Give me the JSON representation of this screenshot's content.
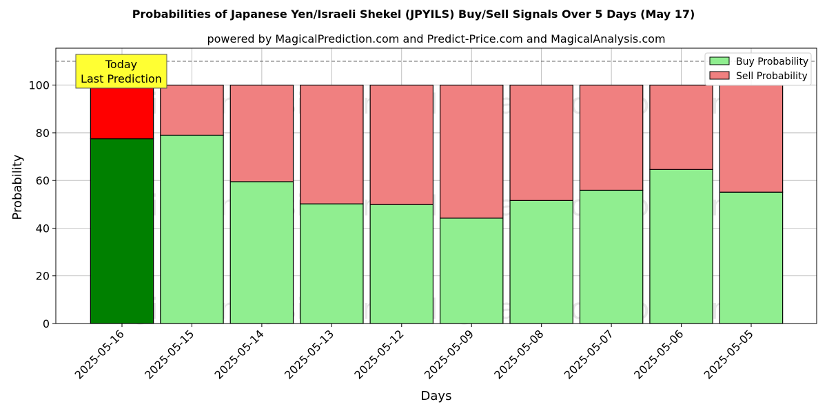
{
  "chart_data": {
    "type": "bar",
    "stacked": true,
    "title": "Probabilities of Japanese Yen/Israeli Shekel (JPYILS) Buy/Sell Signals Over 5 Days (May 17)",
    "subtitle": "powered by MagicalPrediction.com and Predict-Price.com and MagicalAnalysis.com",
    "xlabel": "Days",
    "ylabel": "Probability",
    "ylim": [
      0,
      115.5
    ],
    "yticks": [
      0,
      20,
      40,
      60,
      80,
      100
    ],
    "reference_line": 110,
    "grid": true,
    "legend_position": "top-right",
    "categories": [
      "2025-05-16",
      "2025-05-15",
      "2025-05-14",
      "2025-05-13",
      "2025-05-12",
      "2025-05-09",
      "2025-05-08",
      "2025-05-07",
      "2025-05-06",
      "2025-05-05"
    ],
    "series": [
      {
        "name": "Buy Probability",
        "color": "#90ee90",
        "highlight_color": "#008000",
        "values": [
          77.5,
          79.0,
          59.5,
          50.2,
          49.9,
          44.2,
          51.6,
          55.9,
          64.6,
          55.1
        ]
      },
      {
        "name": "Sell Probability",
        "color": "#f08080",
        "highlight_color": "#ff0000",
        "values": [
          22.5,
          21.0,
          40.5,
          49.8,
          50.1,
          55.8,
          48.4,
          44.1,
          35.4,
          44.9
        ]
      }
    ],
    "highlight_index": 0,
    "annotation": {
      "line1": "Today",
      "line2": "Last Prediction",
      "color": "#ffff33"
    },
    "watermarks": [
      "MagicalAnalysis.com",
      "MagicalPrediction.com",
      "MagicalAnalysis.com",
      "MagicalPrediction.com",
      "MagicalAnalysis.com",
      "MagicalPrediction.com"
    ]
  }
}
